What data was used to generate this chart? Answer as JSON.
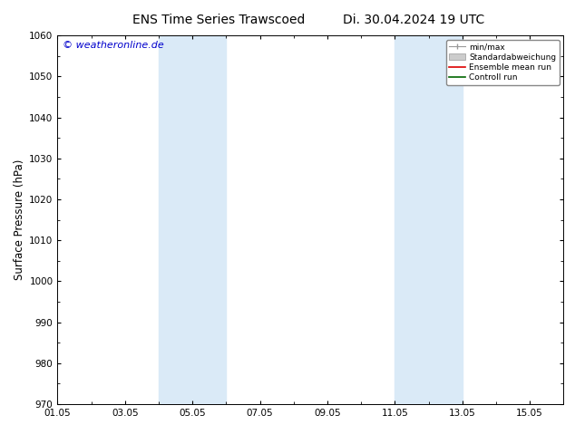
{
  "title": "ENS Time Series Trawscoed",
  "title_right": "Di. 30.04.2024 19 UTC",
  "ylabel": "Surface Pressure (hPa)",
  "ylim": [
    970,
    1060
  ],
  "yticks": [
    970,
    980,
    990,
    1000,
    1010,
    1020,
    1030,
    1040,
    1050,
    1060
  ],
  "xlim_start": 0,
  "xlim_end": 15,
  "xtick_positions": [
    0,
    2,
    4,
    6,
    8,
    10,
    12,
    14
  ],
  "xtick_labels": [
    "01.05",
    "03.05",
    "05.05",
    "07.05",
    "09.05",
    "11.05",
    "13.05",
    "15.05"
  ],
  "shaded_bands": [
    {
      "x_start": 3.0,
      "x_end": 5.0
    },
    {
      "x_start": 10.0,
      "x_end": 12.0
    }
  ],
  "band_color": "#daeaf7",
  "watermark": "© weatheronline.de",
  "watermark_color": "#0000cc",
  "legend_entries": [
    {
      "label": "min/max",
      "color": "#999999",
      "type": "errorbar"
    },
    {
      "label": "Standardabweichung",
      "color": "#cccccc",
      "type": "fill"
    },
    {
      "label": "Ensemble mean run",
      "color": "#dd0000",
      "type": "line"
    },
    {
      "label": "Controll run",
      "color": "#006600",
      "type": "line"
    }
  ],
  "bg_color": "#ffffff",
  "title_fontsize": 10,
  "tick_fontsize": 7.5,
  "ylabel_fontsize": 8.5,
  "watermark_fontsize": 8
}
